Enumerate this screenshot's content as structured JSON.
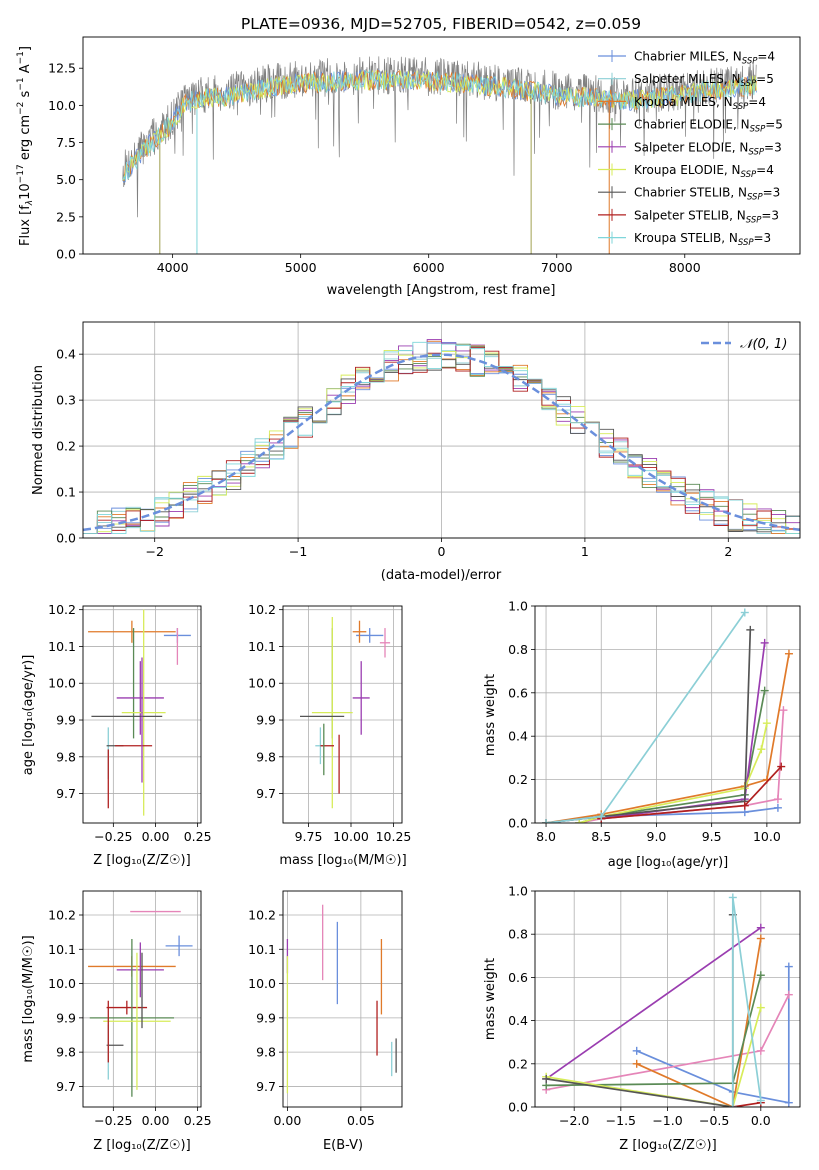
{
  "title": "PLATE=0936, MJD=52705, FIBERID=0542, z=0.059",
  "colors": {
    "chabrier_miles": "#6a8fdc",
    "salpeter_miles": "#8ccfd6",
    "kroupa_miles": "#e07a2a",
    "chabrier_elodie": "#5a8a55",
    "salpeter_elodie": "#9a3db0",
    "kroupa_elodie": "#d7ec5a",
    "chabrier_stelib": "#555555",
    "salpeter_stelib": "#b02020",
    "kroupa_stelib": "#7fd6da",
    "pink": "#e585b8",
    "data": "#808080"
  },
  "chart_data": [
    {
      "id": "spectrum",
      "type": "line",
      "xlabel": "wavelength [Angstrom, rest frame]",
      "ylabel": "Flux [f_λ10⁻¹⁷ erg cm⁻² s⁻¹ A⁻¹]",
      "xlim": [
        3300,
        8900
      ],
      "ylim": [
        0,
        14.6
      ],
      "xticks": [
        "4000",
        "5000",
        "6000",
        "7000",
        "8000"
      ],
      "yticks": [
        "0.0",
        "2.5",
        "5.0",
        "7.5",
        "10.0",
        "12.5"
      ],
      "continuum": [
        [
          3600,
          5.5
        ],
        [
          3700,
          6.5
        ],
        [
          3800,
          7.5
        ],
        [
          3900,
          8.2
        ],
        [
          4000,
          9.2
        ],
        [
          4100,
          10.5
        ],
        [
          4300,
          10.8
        ],
        [
          4500,
          11.0
        ],
        [
          4800,
          11.6
        ],
        [
          5000,
          11.8
        ],
        [
          5500,
          12.0
        ],
        [
          6000,
          12.0
        ],
        [
          6500,
          11.6
        ],
        [
          7000,
          11.0
        ],
        [
          7500,
          10.6
        ],
        [
          7900,
          10.9
        ],
        [
          8200,
          11.3
        ],
        [
          8500,
          11.6
        ]
      ],
      "legend": [
        {
          "label": "Chabrier MILES, N",
          "sub": "SSP",
          "tail": "=4"
        },
        {
          "label": "Salpeter MILES, N",
          "sub": "SSP",
          "tail": "=5"
        },
        {
          "label": "Kroupa MILES, N",
          "sub": "SSP",
          "tail": "=4"
        },
        {
          "label": "Chabrier ELODIE, N",
          "sub": "SSP",
          "tail": "=5"
        },
        {
          "label": "Salpeter ELODIE, N",
          "sub": "SSP",
          "tail": "=3"
        },
        {
          "label": "Kroupa ELODIE, N",
          "sub": "SSP",
          "tail": "=4"
        },
        {
          "label": "Chabrier STELIB, N",
          "sub": "SSP",
          "tail": "=3"
        },
        {
          "label": "Salpeter STELIB, N",
          "sub": "SSP",
          "tail": "=3"
        },
        {
          "label": "Kroupa STELIB, N",
          "sub": "SSP",
          "tail": "=3"
        }
      ]
    },
    {
      "id": "residuals",
      "type": "histogram",
      "xlabel": "(data-model)/error",
      "ylabel": "Normed distribution",
      "xlim": [
        -2.5,
        2.5
      ],
      "ylim": [
        0,
        0.47
      ],
      "xticks": [
        "−2",
        "−1",
        "0",
        "1",
        "2"
      ],
      "yticks": [
        "0.0",
        "0.1",
        "0.2",
        "0.3",
        "0.4"
      ],
      "bin_width": 0.1,
      "legend_label": "𝒩(0, 1)",
      "grid": true
    },
    {
      "id": "age_vs_Z",
      "type": "errorbar",
      "xlabel": "Z [log₁₀(Z/Z☉)]",
      "ylabel": "age  [log₁₀(age/yr)]",
      "xlim": [
        -0.43,
        0.27
      ],
      "ylim": [
        9.62,
        10.21
      ],
      "xticks": [
        "−0.25",
        "0.00",
        "0.25"
      ],
      "yticks": [
        "9.7",
        "9.8",
        "9.9",
        "10.0",
        "10.1",
        "10.2"
      ],
      "points": [
        {
          "c": "#6a8fdc",
          "x": 0.13,
          "y": 10.13,
          "xerr": 0.08,
          "yerr": 0.02
        },
        {
          "c": "#e07a2a",
          "x": -0.14,
          "y": 10.14,
          "xerr": 0.26,
          "yerr": 0.03
        },
        {
          "c": "#e585b8",
          "x": 0.13,
          "y": 10.1,
          "xerr": 0.0,
          "yerr": 0.05
        },
        {
          "c": "#5a8a55",
          "x": -0.13,
          "y": 10.0,
          "xerr": 0.0,
          "yerr": 0.15
        },
        {
          "c": "#9a3db0",
          "x": -0.09,
          "y": 9.96,
          "xerr": 0.14,
          "yerr": 0.1
        },
        {
          "c": "#d7ec5a",
          "x": -0.07,
          "y": 9.92,
          "xerr": 0.13,
          "yerr": 0.28
        },
        {
          "c": "#555555",
          "x": -0.17,
          "y": 9.91,
          "xerr": 0.21,
          "yerr": 0.0
        },
        {
          "c": "#8ccfd6",
          "x": -0.28,
          "y": 9.81,
          "xerr": 0.0,
          "yerr": 0.07
        },
        {
          "c": "#555555",
          "x": -0.24,
          "y": 9.83,
          "xerr": 0.05,
          "yerr": 0.0
        },
        {
          "c": "#b02020",
          "x": -0.13,
          "y": 9.83,
          "xerr": 0.11,
          "yerr": 0.0
        },
        {
          "c": "#b02020",
          "x": -0.28,
          "y": 9.74,
          "xerr": 0.0,
          "yerr": 0.08
        },
        {
          "c": "#9a3db0",
          "x": -0.08,
          "y": 9.9,
          "xerr": 0.0,
          "yerr": 0.17
        }
      ]
    },
    {
      "id": "age_vs_mass",
      "type": "errorbar",
      "xlabel": "mass [log₁₀(M/M☉)]",
      "ylabel": "",
      "xlim": [
        9.6,
        10.3
      ],
      "ylim": [
        9.62,
        10.21
      ],
      "xticks": [
        "9.75",
        "10.00",
        "10.25"
      ],
      "yticks": [
        "9.7",
        "9.8",
        "9.9",
        "10.0",
        "10.1",
        "10.2"
      ],
      "points": [
        {
          "c": "#6a8fdc",
          "x": 10.11,
          "y": 10.13,
          "xerr": 0.08,
          "yerr": 0.02
        },
        {
          "c": "#e585b8",
          "x": 10.2,
          "y": 10.11,
          "xerr": 0.03,
          "yerr": 0.04
        },
        {
          "c": "#e07a2a",
          "x": 10.05,
          "y": 10.14,
          "xerr": 0.04,
          "yerr": 0.03
        },
        {
          "c": "#5a8a55",
          "x": 9.89,
          "y": 10.0,
          "xerr": 0.0,
          "yerr": 0.15
        },
        {
          "c": "#9a3db0",
          "x": 10.06,
          "y": 9.96,
          "xerr": 0.05,
          "yerr": 0.1
        },
        {
          "c": "#d7ec5a",
          "x": 9.89,
          "y": 9.92,
          "xerr": 0.12,
          "yerr": 0.26
        },
        {
          "c": "#555555",
          "x": 9.83,
          "y": 9.91,
          "xerr": 0.13,
          "yerr": 0.0
        },
        {
          "c": "#8ccfd6",
          "x": 9.82,
          "y": 9.83,
          "xerr": 0.03,
          "yerr": 0.05
        },
        {
          "c": "#b02020",
          "x": 9.86,
          "y": 9.83,
          "xerr": 0.04,
          "yerr": 0.0
        },
        {
          "c": "#b02020",
          "x": 9.93,
          "y": 9.78,
          "xerr": 0.0,
          "yerr": 0.08
        },
        {
          "c": "#5a8a55",
          "x": 9.84,
          "y": 9.82,
          "xerr": 0.0,
          "yerr": 0.07
        }
      ]
    },
    {
      "id": "weight_vs_age",
      "type": "line",
      "xlabel": "age  [log₁₀(age/yr)]",
      "ylabel": "mass weight",
      "xlim": [
        7.9,
        10.3
      ],
      "ylim": [
        0,
        1.0
      ],
      "xticks": [
        "8.0",
        "8.5",
        "9.0",
        "9.5",
        "10.0"
      ],
      "yticks": [
        "0.0",
        "0.2",
        "0.4",
        "0.6",
        "0.8",
        "1.0"
      ],
      "series": [
        {
          "c": "#6a8fdc",
          "x": [
            8.0,
            8.5,
            9.8,
            10.1
          ],
          "y": [
            0.0,
            0.03,
            0.05,
            0.07
          ]
        },
        {
          "c": "#e585b8",
          "x": [
            8.3,
            8.5,
            9.8,
            10.1,
            10.15
          ],
          "y": [
            0.0,
            0.02,
            0.08,
            0.11,
            0.52
          ]
        },
        {
          "c": "#e07a2a",
          "x": [
            8.0,
            8.5,
            9.8,
            10.0,
            10.2
          ],
          "y": [
            0.0,
            0.04,
            0.17,
            0.2,
            0.78
          ]
        },
        {
          "c": "#5a8a55",
          "x": [
            8.3,
            8.5,
            9.8,
            9.98
          ],
          "y": [
            0.0,
            0.03,
            0.13,
            0.61
          ]
        },
        {
          "c": "#9a3db0",
          "x": [
            8.5,
            9.8,
            9.98
          ],
          "y": [
            0.02,
            0.11,
            0.83
          ]
        },
        {
          "c": "#d7ec5a",
          "x": [
            8.3,
            8.5,
            9.8,
            9.95,
            10.0
          ],
          "y": [
            0.0,
            0.03,
            0.16,
            0.34,
            0.46
          ]
        },
        {
          "c": "#555555",
          "x": [
            8.0,
            8.5,
            9.8,
            9.85
          ],
          "y": [
            0.0,
            0.03,
            0.1,
            0.89
          ]
        },
        {
          "c": "#b02020",
          "x": [
            8.5,
            9.8,
            10.13
          ],
          "y": [
            0.02,
            0.08,
            0.26
          ]
        },
        {
          "c": "#8ccfd6",
          "x": [
            8.0,
            8.5,
            9.8
          ],
          "y": [
            0.0,
            0.03,
            0.97
          ]
        }
      ]
    },
    {
      "id": "mass_vs_Z",
      "type": "errorbar",
      "xlabel": "Z [log₁₀(Z/Z☉)]",
      "ylabel": "mass [log₁₀(M/M☉)]",
      "xlim": [
        -0.43,
        0.27
      ],
      "ylim": [
        9.64,
        10.27
      ],
      "xticks": [
        "−0.25",
        "0.00",
        "0.25"
      ],
      "yticks": [
        "9.7",
        "9.8",
        "9.9",
        "10.0",
        "10.1",
        "10.2"
      ],
      "points": [
        {
          "c": "#e585b8",
          "x": -0.0,
          "y": 10.21,
          "xerr": 0.15,
          "yerr": 0.0
        },
        {
          "c": "#6a8fdc",
          "x": 0.14,
          "y": 10.11,
          "xerr": 0.08,
          "yerr": 0.03
        },
        {
          "c": "#e07a2a",
          "x": -0.14,
          "y": 10.05,
          "xerr": 0.26,
          "yerr": 0.03
        },
        {
          "c": "#9a3db0",
          "x": -0.09,
          "y": 10.04,
          "xerr": 0.14,
          "yerr": 0.08
        },
        {
          "c": "#b02020",
          "x": -0.17,
          "y": 9.93,
          "xerr": 0.12,
          "yerr": 0.02
        },
        {
          "c": "#5a8a55",
          "x": -0.14,
          "y": 9.9,
          "xerr": 0.25,
          "yerr": 0.23
        },
        {
          "c": "#d7ec5a",
          "x": -0.11,
          "y": 9.89,
          "xerr": 0.2,
          "yerr": 0.2
        },
        {
          "c": "#555555",
          "x": -0.24,
          "y": 9.82,
          "xerr": 0.05,
          "yerr": 0.0
        },
        {
          "c": "#8ccfd6",
          "x": -0.28,
          "y": 9.8,
          "xerr": 0.0,
          "yerr": 0.08
        },
        {
          "c": "#b02020",
          "x": -0.28,
          "y": 9.86,
          "xerr": 0.0,
          "yerr": 0.09
        },
        {
          "c": "#555555",
          "x": -0.08,
          "y": 9.98,
          "xerr": 0.0,
          "yerr": 0.11
        }
      ]
    },
    {
      "id": "mass_vs_EBV",
      "type": "errorbar",
      "xlabel": "E(B-V)",
      "ylabel": "",
      "xlim": [
        -0.003,
        0.078
      ],
      "ylim": [
        9.64,
        10.27
      ],
      "xticks": [
        "0.00",
        "0.05"
      ],
      "yticks": [
        "9.7",
        "9.8",
        "9.9",
        "10.0",
        "10.1",
        "10.2"
      ],
      "points": [
        {
          "c": "#e585b8",
          "x": 0.024,
          "y": 10.12,
          "xerr": 0.0,
          "yerr": 0.11
        },
        {
          "c": "#6a8fdc",
          "x": 0.034,
          "y": 10.06,
          "xerr": 0.0,
          "yerr": 0.12
        },
        {
          "c": "#e07a2a",
          "x": 0.064,
          "y": 10.02,
          "xerr": 0.0,
          "yerr": 0.11
        },
        {
          "c": "#9a3db0",
          "x": 0.0,
          "y": 10.08,
          "xerr": 0.0,
          "yerr": 0.05
        },
        {
          "c": "#d7ec5a",
          "x": 0.0,
          "y": 9.88,
          "xerr": 0.0,
          "yerr": 0.2
        },
        {
          "c": "#b02020",
          "x": 0.061,
          "y": 9.87,
          "xerr": 0.0,
          "yerr": 0.08
        },
        {
          "c": "#8ccfd6",
          "x": 0.071,
          "y": 9.78,
          "xerr": 0.0,
          "yerr": 0.05
        },
        {
          "c": "#555555",
          "x": 0.074,
          "y": 9.79,
          "xerr": 0.0,
          "yerr": 0.05
        }
      ]
    },
    {
      "id": "weight_vs_Z",
      "type": "line",
      "xlabel": "Z [log₁₀(Z/Z☉)]",
      "ylabel": "mass weight",
      "xlim": [
        -2.42,
        0.42
      ],
      "ylim": [
        0,
        1.0
      ],
      "xticks": [
        "−2.0",
        "−1.5",
        "−1.0",
        "−0.5",
        "0.0"
      ],
      "yticks": [
        "0.0",
        "0.2",
        "0.4",
        "0.6",
        "0.8",
        "1.0"
      ],
      "series": [
        {
          "c": "#6a8fdc",
          "x": [
            -1.33,
            -0.3,
            0.3,
            0.3
          ],
          "y": [
            0.26,
            0.07,
            0.02,
            0.65
          ]
        },
        {
          "c": "#e585b8",
          "x": [
            -2.3,
            0.0,
            0.3
          ],
          "y": [
            0.08,
            0.26,
            0.52
          ]
        },
        {
          "c": "#e07a2a",
          "x": [
            -1.33,
            -0.3,
            0.0
          ],
          "y": [
            0.2,
            0.0,
            0.78
          ]
        },
        {
          "c": "#5a8a55",
          "x": [
            -2.3,
            -0.3,
            0.0
          ],
          "y": [
            0.1,
            0.11,
            0.61
          ]
        },
        {
          "c": "#9a3db0",
          "x": [
            -2.3,
            0.0
          ],
          "y": [
            0.13,
            0.83
          ]
        },
        {
          "c": "#d7ec5a",
          "x": [
            -2.3,
            -0.3,
            0.0
          ],
          "y": [
            0.14,
            0.0,
            0.46
          ]
        },
        {
          "c": "#555555",
          "x": [
            -2.3,
            -0.3,
            -0.3
          ],
          "y": [
            0.13,
            0.0,
            0.89
          ]
        },
        {
          "c": "#b02020",
          "x": [
            -0.3,
            0.0
          ],
          "y": [
            0.0,
            0.02
          ]
        },
        {
          "c": "#8ccfd6",
          "x": [
            -0.3,
            -0.3,
            0.0
          ],
          "y": [
            0.0,
            0.97,
            0.03
          ]
        }
      ]
    }
  ]
}
